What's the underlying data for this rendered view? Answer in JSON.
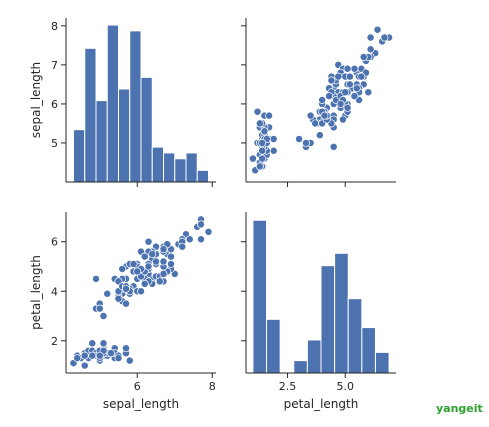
{
  "watermark": "yangeit",
  "chart_data": {
    "type": "pairplot",
    "variables": [
      "sepal_length",
      "petal_length"
    ],
    "color": "#4c72b0",
    "point_edge_color": "#ffffff",
    "panels": [
      {
        "row": 0,
        "col": 0,
        "type": "histogram",
        "variable": "sepal_length",
        "bin_edges": [
          4.3,
          4.6,
          4.9,
          5.2,
          5.5,
          5.8,
          6.1,
          6.4,
          6.7,
          7.0,
          7.3,
          7.6,
          7.9
        ],
        "bin_counts": [
          9,
          23,
          14,
          27,
          16,
          26,
          18,
          6,
          5,
          4,
          5,
          2
        ],
        "y_ticks": [
          5,
          6,
          7,
          8
        ],
        "ylim": [
          4.0,
          8.2
        ],
        "ylabel": "sepal_length"
      },
      {
        "row": 0,
        "col": 1,
        "type": "scatter",
        "x_var": "petal_length",
        "y_var": "sepal_length",
        "xlim": [
          0.7,
          7.2
        ],
        "ylim": [
          4.0,
          8.2
        ],
        "y_ticks": [
          5,
          6,
          7,
          8
        ]
      },
      {
        "row": 1,
        "col": 0,
        "type": "scatter",
        "x_var": "sepal_length",
        "y_var": "petal_length",
        "xlim": [
          4.1,
          8.1
        ],
        "ylim": [
          0.7,
          7.2
        ],
        "y_ticks": [
          2,
          4,
          6
        ],
        "x_ticks": [
          6,
          8
        ],
        "xlabel": "sepal_length",
        "ylabel": "petal_length"
      },
      {
        "row": 1,
        "col": 1,
        "type": "histogram",
        "variable": "petal_length",
        "bin_edges": [
          1.0,
          1.59,
          2.18,
          2.77,
          3.36,
          3.95,
          4.54,
          5.13,
          5.72,
          6.31,
          6.9
        ],
        "bin_counts": [
          37,
          13,
          0,
          3,
          8,
          26,
          29,
          18,
          11,
          5
        ],
        "xlim": [
          0.7,
          7.2
        ],
        "ylim": [
          0,
          39
        ],
        "x_ticks": [
          2.5,
          5.0
        ],
        "x_tick_labels": [
          "2.5",
          "5.0"
        ],
        "xlabel": "petal_length"
      }
    ],
    "points": [
      [
        5.1,
        1.4
      ],
      [
        4.9,
        1.4
      ],
      [
        4.7,
        1.3
      ],
      [
        4.6,
        1.5
      ],
      [
        5.0,
        1.4
      ],
      [
        5.4,
        1.7
      ],
      [
        4.6,
        1.4
      ],
      [
        5.0,
        1.5
      ],
      [
        4.4,
        1.4
      ],
      [
        4.9,
        1.5
      ],
      [
        5.4,
        1.5
      ],
      [
        4.8,
        1.6
      ],
      [
        4.8,
        1.4
      ],
      [
        4.3,
        1.1
      ],
      [
        5.8,
        1.2
      ],
      [
        5.7,
        1.5
      ],
      [
        5.4,
        1.3
      ],
      [
        5.1,
        1.4
      ],
      [
        5.7,
        1.7
      ],
      [
        5.1,
        1.5
      ],
      [
        5.4,
        1.7
      ],
      [
        5.1,
        1.5
      ],
      [
        4.6,
        1.0
      ],
      [
        5.1,
        1.7
      ],
      [
        4.8,
        1.9
      ],
      [
        5.0,
        1.6
      ],
      [
        5.0,
        1.6
      ],
      [
        5.2,
        1.5
      ],
      [
        5.2,
        1.4
      ],
      [
        4.7,
        1.6
      ],
      [
        4.8,
        1.6
      ],
      [
        5.4,
        1.5
      ],
      [
        5.2,
        1.5
      ],
      [
        5.5,
        1.4
      ],
      [
        4.9,
        1.5
      ],
      [
        5.0,
        1.2
      ],
      [
        5.5,
        1.3
      ],
      [
        4.9,
        1.4
      ],
      [
        4.4,
        1.3
      ],
      [
        5.1,
        1.5
      ],
      [
        5.0,
        1.3
      ],
      [
        4.5,
        1.3
      ],
      [
        4.4,
        1.3
      ],
      [
        5.0,
        1.6
      ],
      [
        5.1,
        1.9
      ],
      [
        4.8,
        1.4
      ],
      [
        5.1,
        1.6
      ],
      [
        4.6,
        1.4
      ],
      [
        5.3,
        1.5
      ],
      [
        5.0,
        1.4
      ],
      [
        7.0,
        4.7
      ],
      [
        6.4,
        4.5
      ],
      [
        6.9,
        4.9
      ],
      [
        5.5,
        4.0
      ],
      [
        6.5,
        4.6
      ],
      [
        5.7,
        4.5
      ],
      [
        6.3,
        4.7
      ],
      [
        4.9,
        3.3
      ],
      [
        6.6,
        4.6
      ],
      [
        5.2,
        3.9
      ],
      [
        5.0,
        3.5
      ],
      [
        5.9,
        4.2
      ],
      [
        6.0,
        4.0
      ],
      [
        6.1,
        4.7
      ],
      [
        5.6,
        3.6
      ],
      [
        6.7,
        4.4
      ],
      [
        5.6,
        4.5
      ],
      [
        5.8,
        4.1
      ],
      [
        6.2,
        4.5
      ],
      [
        5.6,
        3.9
      ],
      [
        5.9,
        4.8
      ],
      [
        6.1,
        4.0
      ],
      [
        6.3,
        4.9
      ],
      [
        6.1,
        4.7
      ],
      [
        6.4,
        4.3
      ],
      [
        6.6,
        4.4
      ],
      [
        6.8,
        4.8
      ],
      [
        6.7,
        5.0
      ],
      [
        6.0,
        4.5
      ],
      [
        5.7,
        3.5
      ],
      [
        5.5,
        3.8
      ],
      [
        5.5,
        3.7
      ],
      [
        5.8,
        3.9
      ],
      [
        6.0,
        5.1
      ],
      [
        5.4,
        4.5
      ],
      [
        6.0,
        4.5
      ],
      [
        6.7,
        4.7
      ],
      [
        6.3,
        4.4
      ],
      [
        5.6,
        4.1
      ],
      [
        5.5,
        4.0
      ],
      [
        5.5,
        4.4
      ],
      [
        6.1,
        4.6
      ],
      [
        5.8,
        4.0
      ],
      [
        5.0,
        3.3
      ],
      [
        5.6,
        4.2
      ],
      [
        5.7,
        4.2
      ],
      [
        5.7,
        4.2
      ],
      [
        6.2,
        4.3
      ],
      [
        5.1,
        3.0
      ],
      [
        5.7,
        4.1
      ],
      [
        6.3,
        6.0
      ],
      [
        5.8,
        5.1
      ],
      [
        7.1,
        5.9
      ],
      [
        6.3,
        5.6
      ],
      [
        6.5,
        5.8
      ],
      [
        7.6,
        6.6
      ],
      [
        4.9,
        4.5
      ],
      [
        7.3,
        6.3
      ],
      [
        6.7,
        5.8
      ],
      [
        7.2,
        6.1
      ],
      [
        6.5,
        5.1
      ],
      [
        6.4,
        5.3
      ],
      [
        6.8,
        5.5
      ],
      [
        5.7,
        5.0
      ],
      [
        5.8,
        5.1
      ],
      [
        6.4,
        5.3
      ],
      [
        6.5,
        5.5
      ],
      [
        7.7,
        6.7
      ],
      [
        7.7,
        6.9
      ],
      [
        6.0,
        5.0
      ],
      [
        6.9,
        5.7
      ],
      [
        5.6,
        4.9
      ],
      [
        7.7,
        6.7
      ],
      [
        6.3,
        4.9
      ],
      [
        6.7,
        5.7
      ],
      [
        7.2,
        6.0
      ],
      [
        6.2,
        4.8
      ],
      [
        6.1,
        4.9
      ],
      [
        6.4,
        5.6
      ],
      [
        7.2,
        5.8
      ],
      [
        7.4,
        6.1
      ],
      [
        7.9,
        6.4
      ],
      [
        6.4,
        5.6
      ],
      [
        6.3,
        5.1
      ],
      [
        6.1,
        5.6
      ],
      [
        7.7,
        6.1
      ],
      [
        6.3,
        5.6
      ],
      [
        6.4,
        5.5
      ],
      [
        6.0,
        4.8
      ],
      [
        6.9,
        5.4
      ],
      [
        6.7,
        5.6
      ],
      [
        6.9,
        5.1
      ],
      [
        5.8,
        5.1
      ],
      [
        6.8,
        5.9
      ],
      [
        6.7,
        5.7
      ],
      [
        6.7,
        5.2
      ],
      [
        6.3,
        5.0
      ],
      [
        6.5,
        5.2
      ],
      [
        6.2,
        5.4
      ],
      [
        5.9,
        5.1
      ]
    ]
  }
}
